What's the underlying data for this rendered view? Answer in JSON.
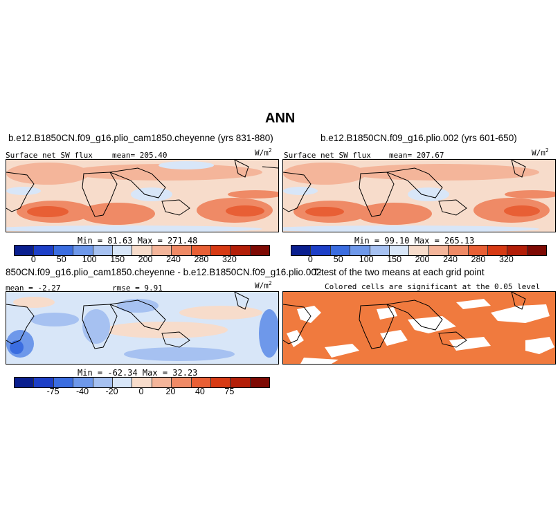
{
  "title": "ANN",
  "panels": [
    {
      "case_title": "b.e12.B1850CN.f09_g16.plio_cam1850.cheyenne (yrs 831-880)",
      "var_label": "Surface net SW flux",
      "stat_label": "mean= 205.40",
      "units_base": "W/m",
      "units_exp": "2",
      "minmax": "Min =  81.63 Max = 271.48",
      "colorbar": "main",
      "kind": "field"
    },
    {
      "case_title": "b.e12.B1850CN.f09_g16.plio.002 (yrs 601-650)",
      "var_label": "Surface net SW flux",
      "stat_label": "mean= 207.67",
      "units_base": "W/m",
      "units_exp": "2",
      "minmax": "Min =  99.10 Max = 265.13",
      "colorbar": "main",
      "kind": "field"
    },
    {
      "case_title": "850CN.f09_g16.plio_cam1850.cheyenne - b.e12.B1850CN.f09_g16.plio.002",
      "var_label": "mean =  -2.27",
      "stat_label": "rmse =   9.91",
      "units_base": "W/m",
      "units_exp": "2",
      "minmax": "Min = -62.34 Max =  32.23",
      "colorbar": "diff",
      "kind": "diff"
    },
    {
      "case_title": "T-test of the two means at each grid point",
      "subtitle": "Colored cells are significant at the 0.05 level",
      "kind": "ttest"
    }
  ],
  "colorbars": {
    "main": {
      "colors": [
        "#0a1f8f",
        "#1d3fc7",
        "#3b6de0",
        "#6e98ea",
        "#a6c1f1",
        "#d8e6f8",
        "#f7dccb",
        "#f4b59a",
        "#ef8a66",
        "#e85f35",
        "#d73a14",
        "#b31e08",
        "#7e0a04"
      ],
      "tick_labels": [
        "0",
        "50",
        "100",
        "150",
        "200",
        "240",
        "280",
        "320"
      ]
    },
    "diff": {
      "colors": [
        "#0a1f8f",
        "#1d3fc7",
        "#3b6de0",
        "#6e98ea",
        "#a6c1f1",
        "#d8e6f8",
        "#f7dccb",
        "#f4b59a",
        "#ef8a66",
        "#e85f35",
        "#d73a14",
        "#b31e08",
        "#7e0a04"
      ],
      "tick_labels": [
        "-75",
        "-40",
        "-20",
        "0",
        "20",
        "40",
        "75"
      ]
    }
  },
  "ttest_color": "#f07a3e"
}
